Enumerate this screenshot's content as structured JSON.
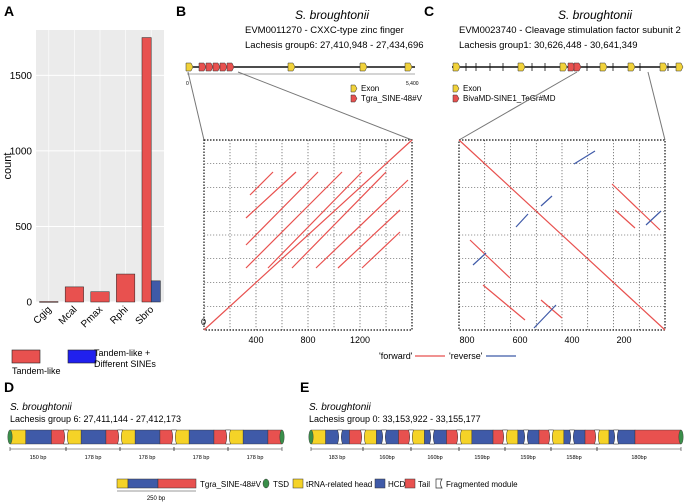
{
  "panels": {
    "a": "A",
    "b": "B",
    "c": "C",
    "d": "D",
    "e": "E"
  },
  "species": "S. broughtonii",
  "chart_data": {
    "type": "bar",
    "ylabel": "count",
    "ylim": [
      0,
      1800
    ],
    "yticks": [
      0,
      500,
      1000,
      1500
    ],
    "categories": [
      "Cgig",
      "Mcal",
      "Pmax",
      "Rphi",
      "Sbro"
    ],
    "series": [
      {
        "name": "Tandem-like",
        "color": "#e8514f",
        "values": [
          3,
          100,
          68,
          185,
          1750
        ]
      },
      {
        "name": "Tandem-like + Different SINEs",
        "color": "#3f5aa8",
        "values": [
          0,
          0,
          0,
          0,
          140
        ]
      }
    ]
  },
  "legend_a": {
    "item1": "Tandem-like",
    "item2_line1": "Tandem-like +",
    "item2_line2": "Different SINEs"
  },
  "panel_b": {
    "gene": "EVM0011270  - CXXC-type zinc finger",
    "locus": "Lachesis group6: 27,410,948 - 27,434,696",
    "scale_start": "0",
    "scale_end": "5,400",
    "legend_exon": "Exon",
    "legend_sine": "Tgra_SINE-48#V",
    "dot_xticks": [
      "400",
      "800",
      "1200"
    ],
    "dot_origin": "0"
  },
  "panel_c": {
    "gene": "EVM0023740 - Cleavage stimulation factor subunit 2",
    "locus": "Lachesis group1: 30,626,448 - 30,641,349",
    "legend_exon": "Exon",
    "legend_sine": "BivaMD-SINE1_TeGr#MD",
    "dot_xticks": [
      "800",
      "600",
      "400",
      "200"
    ]
  },
  "dot_legend": {
    "forward": "'forward'",
    "reverse": "'reverse'"
  },
  "panel_d": {
    "locus": "Lachesis group 6: 27,411,144 - 27,412,173",
    "spans": [
      "150 bp",
      "178 bp",
      "178 bp",
      "178 bp",
      "178 bp"
    ]
  },
  "panel_e": {
    "locus": "Lachesis group 0: 33,153,922 - 33,155,177",
    "spans": [
      "183 bp",
      "160bp",
      "160bp",
      "159bp",
      "159bp",
      "158bp",
      "180bp"
    ]
  },
  "bottom_legend": {
    "sine_name": "Tgra_SINE-48#V",
    "length": "250 bp",
    "tsd": "TSD",
    "trna": "tRNA-related head",
    "hcd": "HCD",
    "tail": "Tail",
    "fragmented": "Fragmented module"
  },
  "colors": {
    "red": "#e8514f",
    "blue": "#3f5aa8",
    "yellow": "#f5d327",
    "green": "#3a8f4a",
    "exon": "#f1d23a"
  }
}
